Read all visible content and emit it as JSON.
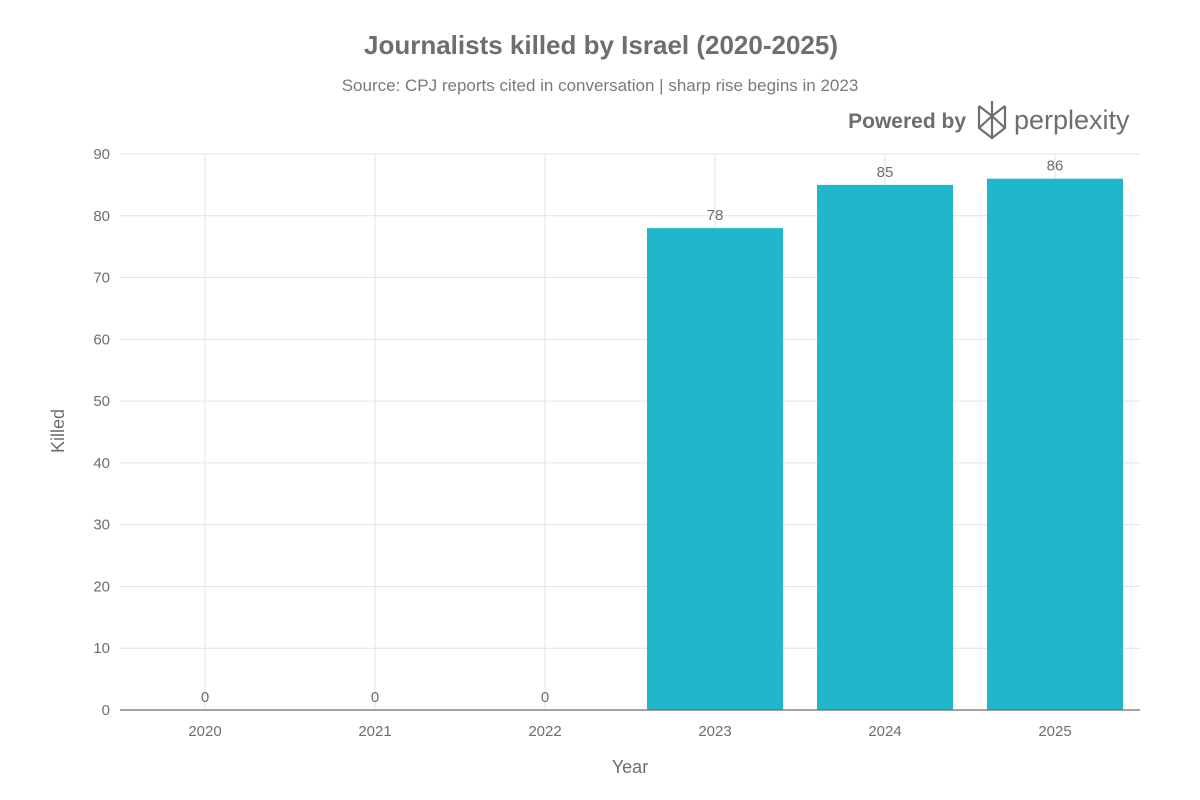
{
  "branding": {
    "powered_by": "Powered by",
    "name": "perplexity"
  },
  "chart_data": {
    "type": "bar",
    "title": "Journalists killed by Israel (2020-2025)",
    "subtitle": "Source: CPJ reports cited in conversation | sharp rise begins in 2023",
    "xlabel": "Year",
    "ylabel": "Killed",
    "categories": [
      "2020",
      "2021",
      "2022",
      "2023",
      "2024",
      "2025"
    ],
    "values": [
      0,
      0,
      0,
      78,
      85,
      86
    ],
    "data_labels": [
      "0",
      "0",
      "0",
      "78",
      "85",
      "86"
    ],
    "ylim": [
      0,
      90
    ],
    "yticks": [
      0,
      10,
      20,
      30,
      40,
      50,
      60,
      70,
      80,
      90
    ],
    "grid": true,
    "bar_color": "#20b7cb",
    "text_color": "#6e6e6e"
  }
}
